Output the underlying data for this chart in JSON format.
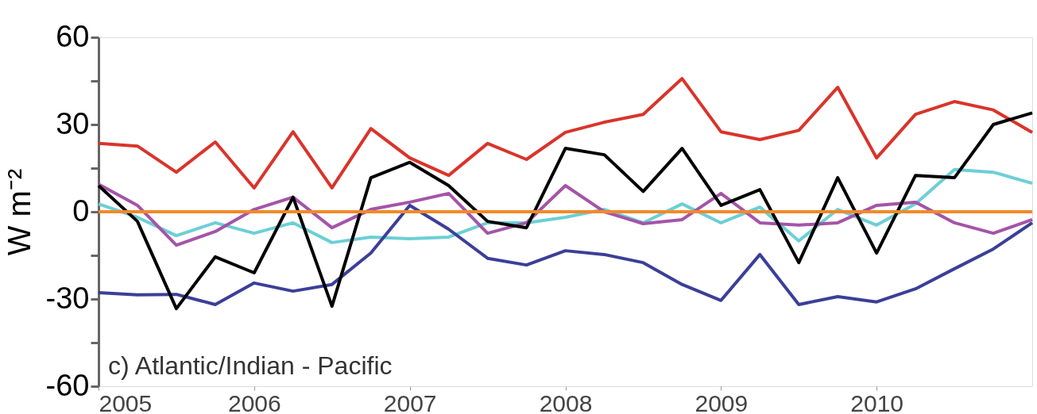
{
  "chart_data": {
    "type": "line",
    "ylabel": "W m⁻²",
    "x": [
      2005,
      2005.25,
      2005.5,
      2005.75,
      2006,
      2006.25,
      2006.5,
      2006.75,
      2007,
      2007.25,
      2007.5,
      2007.75,
      2008,
      2008.25,
      2008.5,
      2008.75,
      2009,
      2009.25,
      2009.5,
      2009.75,
      2010,
      2010.25,
      2010.5,
      2010.75,
      2011
    ],
    "series": [
      {
        "color": "#6ccfd6",
        "values": [
          2.7,
          -1.9,
          -8.2,
          -3.8,
          -7.4,
          -3.8,
          -10.6,
          -8.7,
          -9.3,
          -8.7,
          -3.8,
          -3.8,
          -1.9,
          0.8,
          -3.8,
          2.7,
          -3.8,
          1.6,
          -10,
          0.8,
          -4.6,
          2.7,
          14.5,
          13.6,
          9.8
        ]
      },
      {
        "color": "#a454a8",
        "values": [
          9.5,
          2.2,
          -11.5,
          -6.8,
          0.8,
          5,
          -5.5,
          0.8,
          3.3,
          6.3,
          -7.4,
          -3.8,
          9,
          0,
          -4.1,
          -2.7,
          6.3,
          -3.8,
          -4.6,
          -3.8,
          2.2,
          3.3,
          -3.8,
          -7.4,
          -2.7
        ]
      },
      {
        "color": "#3b3f98",
        "values": [
          -27.8,
          -28.6,
          -28.4,
          -31.9,
          -24.5,
          -27.3,
          -25,
          -14.2,
          2.2,
          -6,
          -16,
          -18.3,
          -13.4,
          -14.7,
          -17.5,
          -25,
          -30.5,
          -14.7,
          -31.9,
          -29.2,
          -31,
          -26.5,
          -19.6,
          -12.8,
          -3.8
        ]
      },
      {
        "color": "#d9342b",
        "values": [
          23.5,
          22.6,
          13.6,
          24,
          8.2,
          27.5,
          8.2,
          28.6,
          18.5,
          12.5,
          23.5,
          18,
          27.3,
          30.8,
          33.5,
          45.8,
          27.5,
          24.8,
          28,
          42.8,
          18.5,
          33.5,
          37.9,
          35,
          27.3
        ]
      },
      {
        "color": "#000000",
        "values": [
          9,
          -3.3,
          -33.3,
          -15.5,
          -21,
          5,
          -32.5,
          11.7,
          17,
          9,
          -3.3,
          -5.5,
          21.8,
          19.6,
          7,
          21.8,
          2.2,
          7.6,
          -17.5,
          11.7,
          -14.2,
          12.5,
          11.7,
          30,
          34
        ]
      }
    ],
    "ref_lines": [
      {
        "axis": "y",
        "value": 0,
        "color": "#f08a2c"
      }
    ],
    "xlim": [
      2005,
      2011
    ],
    "xticks": [
      2005,
      2006,
      2007,
      2008,
      2009,
      2010
    ],
    "ylim": [
      -60,
      60
    ],
    "yticks": [
      -60,
      {
        "value": -45,
        "label": null
      },
      -30,
      {
        "value": -15,
        "label": null
      },
      0,
      {
        "value": 15,
        "label": null
      },
      30,
      {
        "value": 45,
        "label": null
      },
      60
    ],
    "annotations": [
      "c) Atlantic/Indian - Pacific"
    ],
    "grid": false,
    "legend": false
  }
}
